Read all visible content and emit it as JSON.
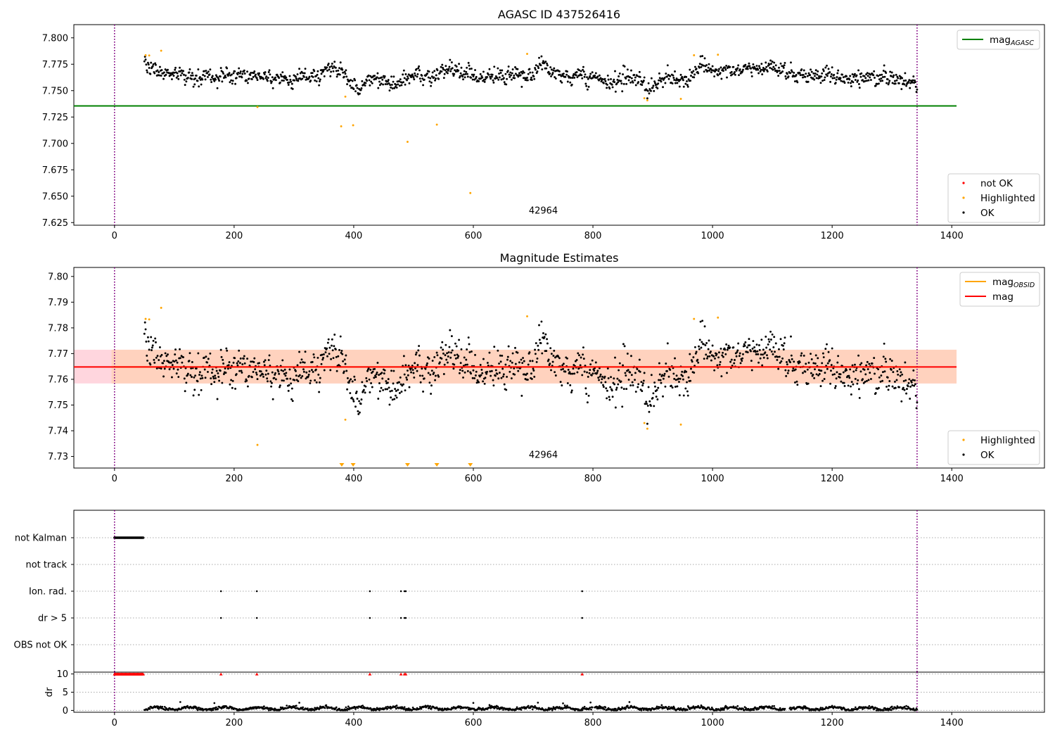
{
  "chart_data": [
    {
      "type": "scatter",
      "title": "AGASC ID 437526416",
      "xlim": [
        -68,
        1555
      ],
      "ylim": [
        7.6225,
        7.8125
      ],
      "yticks": [
        "7.625",
        "7.650",
        "7.675",
        "7.700",
        "7.725",
        "7.750",
        "7.775",
        "7.800"
      ],
      "xticks": [
        "0",
        "200",
        "400",
        "600",
        "800",
        "1000",
        "1200",
        "1400"
      ],
      "obsid_label": "42964",
      "obsid_label_pos": [
        670,
        7.6335
      ],
      "vlines": [
        0,
        1342
      ],
      "reference_line": {
        "name": "mag",
        "sub": "AGASC",
        "y": 7.7355,
        "x": [
          -68,
          1408
        ],
        "color": "#008000"
      },
      "band": null,
      "legend_upper": [
        {
          "label": "mag",
          "sub": "AGASC",
          "kind": "line",
          "color": "#008000"
        }
      ],
      "legend_lower": [
        {
          "label": "not OK",
          "kind": "dot",
          "color": "#ff0000"
        },
        {
          "label": "Highlighted",
          "kind": "dot",
          "color": "#ffa500"
        },
        {
          "label": "OK",
          "kind": "dot",
          "color": "#000000"
        }
      ],
      "series": [
        {
          "label": "OK",
          "color": "#000000",
          "x_start": 50,
          "x_end": 1342,
          "trend": "m1"
        },
        {
          "label": "Highlighted",
          "color": "#ffa500",
          "points": [
            [
              52,
              7.7835
            ],
            [
              58,
              7.7833
            ],
            [
              78,
              7.7878
            ],
            [
              239,
              7.7345
            ],
            [
              379,
              7.7162
            ],
            [
              386,
              7.7443
            ],
            [
              399,
              7.7172
            ],
            [
              490,
              7.7015
            ],
            [
              539,
              7.7178
            ],
            [
              595,
              7.653
            ],
            [
              690,
              7.7848
            ],
            [
              886,
              7.7428
            ],
            [
              891,
              7.7408
            ],
            [
              947,
              7.7422
            ],
            [
              969,
              7.7835
            ],
            [
              1009,
              7.784
            ]
          ]
        }
      ]
    },
    {
      "type": "scatter",
      "title": "Magnitude Estimates",
      "xlim": [
        -68,
        1555
      ],
      "ylim": [
        7.7255,
        7.8035
      ],
      "yticks": [
        "7.73",
        "7.74",
        "7.75",
        "7.76",
        "7.77",
        "7.78",
        "7.79",
        "7.80"
      ],
      "xticks": [
        "0",
        "200",
        "400",
        "600",
        "800",
        "1000",
        "1200",
        "1400"
      ],
      "obsid_label": "42964",
      "obsid_label_pos": [
        670,
        7.7295
      ],
      "vlines": [
        0,
        1342
      ],
      "mean_line": {
        "name": "mag",
        "y": 7.7648,
        "x": [
          -68,
          1408
        ],
        "color": "#ff0000"
      },
      "band": {
        "y0": 7.7584,
        "y1": 7.7715,
        "x": [
          -68,
          1408
        ],
        "inner_x": [
          -5,
          1408
        ],
        "outer_color": "#ffd6de",
        "inner_color": "#ffd2be"
      },
      "obsid_line": {
        "name": "mag",
        "sub": "OBSID",
        "color": "#ffa500",
        "y": 7.7648,
        "x": [
          0,
          1342
        ]
      },
      "legend_upper": [
        {
          "label": "mag",
          "sub": "OBSID",
          "kind": "line",
          "color": "#ffa500"
        },
        {
          "label": "mag",
          "kind": "line",
          "color": "#ff0000"
        }
      ],
      "legend_lower": [
        {
          "label": "Highlighted",
          "kind": "dot",
          "color": "#ffa500"
        },
        {
          "label": "OK",
          "kind": "dot",
          "color": "#000000"
        }
      ],
      "clipped_markers_x": [
        380,
        399,
        490,
        539,
        595
      ],
      "series": [
        {
          "label": "OK",
          "color": "#000000",
          "x_start": 50,
          "x_end": 1342,
          "trend": "m2"
        },
        {
          "label": "Highlighted",
          "color": "#ffa500",
          "points": [
            [
              52,
              7.7835
            ],
            [
              58,
              7.7833
            ],
            [
              78,
              7.7878
            ],
            [
              239,
              7.7345
            ],
            [
              386,
              7.7443
            ],
            [
              690,
              7.7845
            ],
            [
              886,
              7.743
            ],
            [
              891,
              7.7408
            ],
            [
              947,
              7.7424
            ],
            [
              969,
              7.7835
            ],
            [
              1009,
              7.784
            ]
          ]
        }
      ]
    },
    {
      "type": "scatter",
      "title": "",
      "xlim": [
        -68,
        1555
      ],
      "flag_rows": [
        "not Kalman",
        "not track",
        "Ion. rad.",
        "dr > 5",
        "OBS not OK"
      ],
      "vlines": [
        0,
        1342
      ],
      "flags": {
        "not Kalman": {
          "x_start": 0,
          "x_end": 48
        },
        "not track": {
          "x": []
        },
        "Ion. rad.": {
          "x": [
            178,
            238,
            427,
            479,
            485,
            487,
            782
          ]
        },
        "dr > 5": {
          "x": [
            178,
            238,
            427,
            479,
            485,
            487,
            782
          ]
        },
        "OBS not OK": {
          "x": []
        }
      }
    },
    {
      "type": "scatter",
      "title": "",
      "ylabel": "dr",
      "xlim": [
        -68,
        1555
      ],
      "ylim": [
        -0.5,
        10.5
      ],
      "yticks": [
        "0",
        "5",
        "10"
      ],
      "xticks": [
        "0",
        "200",
        "400",
        "600",
        "800",
        "1000",
        "1200",
        "1400"
      ],
      "vlines": [
        0,
        1342
      ],
      "clipped_markers_x": [
        0,
        48,
        178,
        238,
        427,
        479,
        485,
        487,
        782
      ],
      "series": [
        {
          "label": "dr",
          "color": "#000000",
          "x_start": 50,
          "x_end": 1342,
          "gaps": [
            [
              800,
              802
            ],
            [
              1122,
              1128
            ]
          ]
        }
      ]
    }
  ]
}
